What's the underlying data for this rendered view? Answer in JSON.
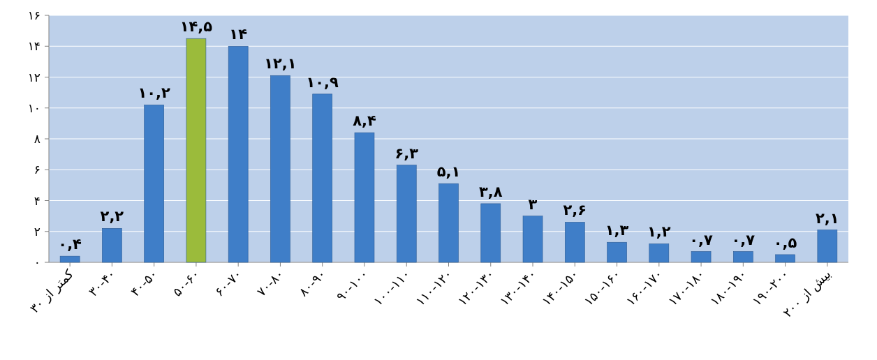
{
  "chart_data": {
    "type": "bar",
    "categories": [
      "کمتر از ۳۰",
      "۳۰-۴۰",
      "۴۰-۵۰",
      "۵۰-۶۰",
      "۶۰-۷۰",
      "۷۰-۸۰",
      "۸۰-۹۰",
      "۹۰-۱۰۰",
      "۱۰۰-۱۱۰",
      "۱۱۰-۱۲۰",
      "۱۲۰-۱۳۰",
      "۱۳۰-۱۴۰",
      "۱۴۰-۱۵۰",
      "۱۵۰-۱۶۰",
      "۱۶۰-۱۷۰",
      "۱۷۰-۱۸۰",
      "۱۸۰-۱۹۰",
      "۱۹۰-۲۰۰",
      "بیش از ۲۰۰"
    ],
    "values": [
      0.4,
      2.2,
      10.2,
      14.5,
      14,
      12.1,
      10.9,
      8.4,
      6.3,
      5.1,
      3.8,
      3,
      2.6,
      1.3,
      1.2,
      0.7,
      0.7,
      0.5,
      2.1
    ],
    "value_labels": [
      "۰,۴",
      "۲,۲",
      "۱۰,۲",
      "۱۴,۵",
      "۱۴",
      "۱۲,۱",
      "۱۰,۹",
      "۸,۴",
      "۶,۳",
      "۵,۱",
      "۳,۸",
      "۳",
      "۲,۶",
      "۱,۳",
      "۱,۲",
      "۰,۷",
      "۰,۷",
      "۰,۵",
      "۲,۱"
    ],
    "colors": [
      "#3f7ec8",
      "#3f7ec8",
      "#3f7ec8",
      "#9bbb3b",
      "#3f7ec8",
      "#3f7ec8",
      "#3f7ec8",
      "#3f7ec8",
      "#3f7ec8",
      "#3f7ec8",
      "#3f7ec8",
      "#3f7ec8",
      "#3f7ec8",
      "#3f7ec8",
      "#3f7ec8",
      "#3f7ec8",
      "#3f7ec8",
      "#3f7ec8",
      "#3f7ec8"
    ],
    "ylim": [
      0,
      16
    ],
    "yticks": [
      {
        "value": 0,
        "label": "۰"
      },
      {
        "value": 2,
        "label": "۲"
      },
      {
        "value": 4,
        "label": "۴"
      },
      {
        "value": 6,
        "label": "۶"
      },
      {
        "value": 8,
        "label": "۸"
      },
      {
        "value": 10,
        "label": "۱۰"
      },
      {
        "value": 12,
        "label": "۱۲"
      },
      {
        "value": 14,
        "label": "۱۴"
      },
      {
        "value": 16,
        "label": "۱۶"
      }
    ],
    "grid": "y"
  }
}
